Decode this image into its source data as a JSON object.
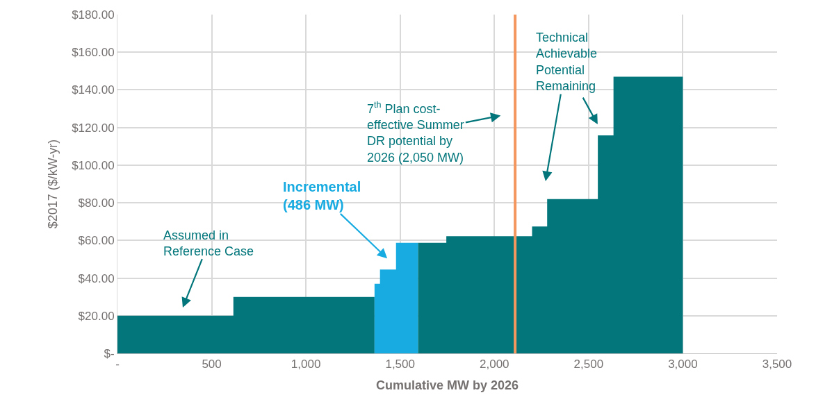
{
  "chart_data": {
    "type": "area",
    "xlabel": "Cumulative MW by 2026",
    "ylabel": "$2017 ($/kW-yr)",
    "series": [
      {
        "color": "#02767b",
        "x": [
          0,
          0,
          615,
          615,
          1364,
          1364
        ],
        "values": [
          0,
          20,
          20,
          30,
          30,
          0
        ]
      },
      {
        "color": "#17abe1",
        "x": [
          1364,
          1364,
          1393,
          1393,
          1478,
          1478,
          1595,
          1595
        ],
        "values": [
          0,
          37,
          37,
          44.5,
          44.5,
          58.7,
          58.7,
          0
        ]
      },
      {
        "color": "#02767b",
        "x": [
          1595,
          1595,
          1745,
          1745,
          2200,
          2200,
          2280,
          2280,
          2549,
          2549,
          2632,
          2632,
          3000,
          3000
        ],
        "values": [
          0,
          58.7,
          58.7,
          62.2,
          62.2,
          67.4,
          67.4,
          82,
          82,
          115.8,
          115.8,
          147,
          147,
          0
        ]
      }
    ],
    "ref_lines": [
      {
        "axis": "x",
        "value": 2110,
        "color": "#f4975f"
      }
    ],
    "annotations": [
      "Assumed in\nReference Case",
      "Incremental\n(486 MW)",
      "7$^{th}$ Plan cost-\neffective Summer\nDR potential by\n2026 (2,050 MW)",
      "Technical\nAchievable\nPotential\nRemaining"
    ],
    "xlim": [
      0,
      3500
    ],
    "xticks": [
      {
        "value": 0,
        "label": "-"
      },
      500,
      {
        "value": 1000,
        "label": "1,000"
      },
      {
        "value": 1500,
        "label": "1,500"
      },
      {
        "value": 2000,
        "label": "2,000"
      },
      {
        "value": 2500,
        "label": "2,500"
      },
      {
        "value": 3000,
        "label": "3,000"
      },
      {
        "value": 3500,
        "label": "3,500"
      }
    ],
    "ylim": [
      0,
      180
    ],
    "yticks": [
      {
        "value": 0,
        "label": "$-"
      },
      {
        "value": 20,
        "label": "$20.00"
      },
      {
        "value": 40,
        "label": "$40.00"
      },
      {
        "value": 60,
        "label": "$60.00"
      },
      {
        "value": 80,
        "label": "$80.00"
      },
      {
        "value": 100,
        "label": "$100.00"
      },
      {
        "value": 120,
        "label": "$120.00"
      },
      {
        "value": 140,
        "label": "$140.00"
      },
      {
        "value": 160,
        "label": "$160.00"
      },
      {
        "value": 180,
        "label": "$180.00"
      }
    ],
    "grid": true
  }
}
